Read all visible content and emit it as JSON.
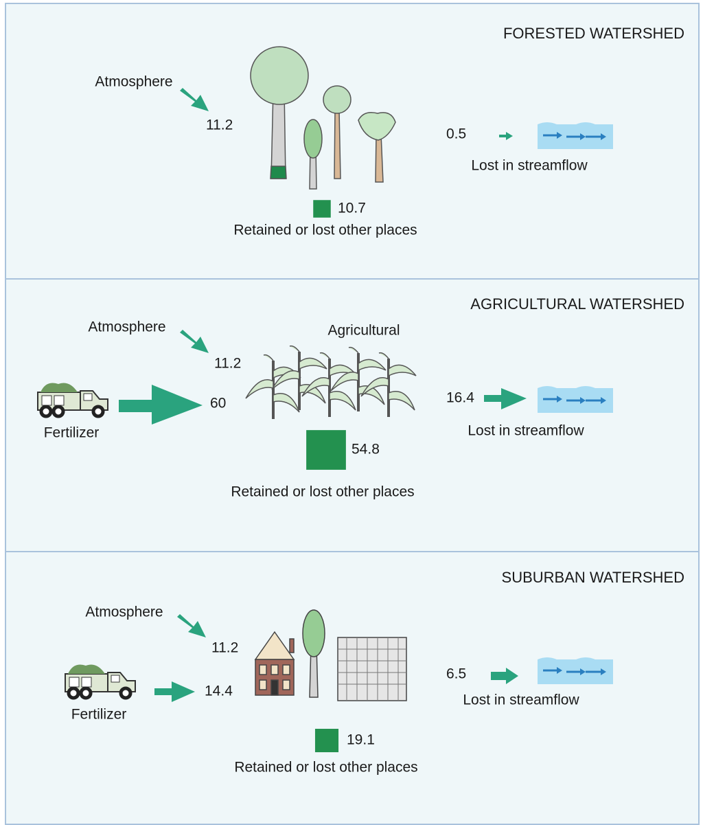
{
  "panels": [
    {
      "title": "FORESTED WATERSHED",
      "atmosphere": {
        "label": "Atmosphere",
        "value": 11.2
      },
      "retained": {
        "value": 10.7,
        "label": "Retained or lost other places"
      },
      "streamflow": {
        "value": 0.5,
        "label": "Lost in streamflow"
      }
    },
    {
      "title": "AGRICULTURAL WATERSHED",
      "atmosphere": {
        "label": "Atmosphere",
        "value": 11.2
      },
      "fertilizer": {
        "label": "Fertilizer",
        "value": 60
      },
      "land_label": "Agricultural",
      "retained": {
        "value": 54.8,
        "label": "Retained or lost other places"
      },
      "streamflow": {
        "value": 16.4,
        "label": "Lost in streamflow"
      }
    },
    {
      "title": "SUBURBAN WATERSHED",
      "atmosphere": {
        "label": "Atmosphere",
        "value": 11.2
      },
      "fertilizer": {
        "label": "Fertilizer",
        "value": 14.4
      },
      "retained": {
        "value": 19.1,
        "label": "Retained or lost other places"
      },
      "streamflow": {
        "value": 6.5,
        "label": "Lost in streamflow"
      }
    }
  ]
}
